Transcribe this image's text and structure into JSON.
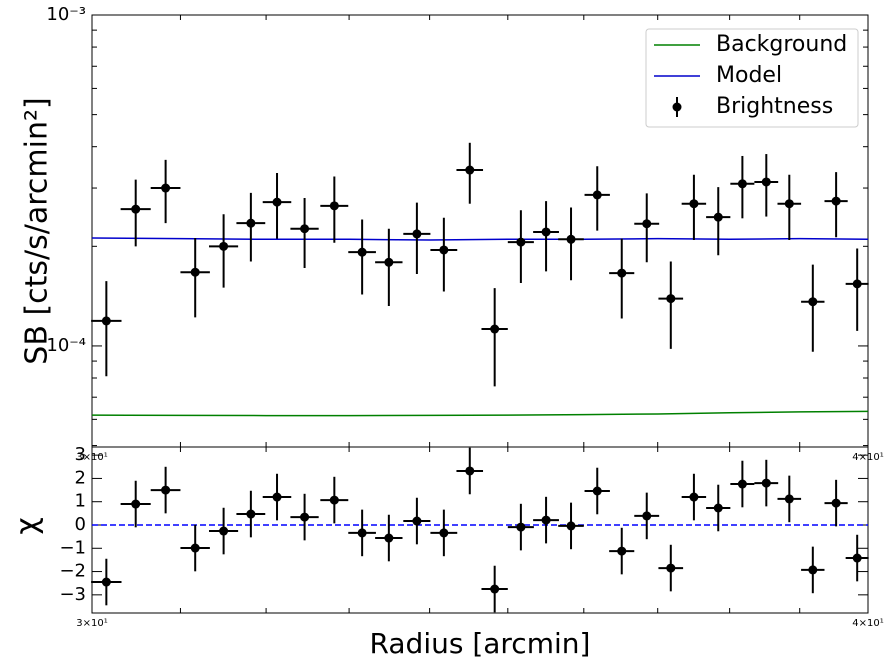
{
  "chart_data": [
    {
      "type": "errorbar",
      "ylabel": "SB [cts/s/arcmin²]",
      "xscale": "log",
      "yscale": "log",
      "xlim": [
        30,
        40
      ],
      "xticks": [
        {
          "value": 30,
          "label": "3×10¹"
        },
        {
          "value": 40,
          "label": "4×10¹"
        }
      ],
      "xminorticks": [
        31,
        32,
        33,
        34,
        35,
        36,
        37,
        38,
        39
      ],
      "ylim": [
        4.95e-05,
        0.001
      ],
      "yticks": [
        {
          "value": 0.0001,
          "label": "10⁻⁴"
        },
        {
          "value": 0.001,
          "label": "10⁻³"
        }
      ],
      "yminorticks": [
        5e-05,
        6e-05,
        7e-05,
        8e-05,
        9e-05,
        0.0002,
        0.0003,
        0.0004,
        0.0005,
        0.0006,
        0.0007,
        0.0008,
        0.0009
      ],
      "legend": "upper right",
      "series": [
        {
          "name": "Background",
          "type": "line",
          "color": "#008000",
          "x": [
            30,
            31,
            32,
            33,
            34,
            35,
            36,
            37,
            38,
            39,
            40
          ],
          "values": [
            6.18e-05,
            6.17e-05,
            6.16e-05,
            6.16e-05,
            6.17e-05,
            6.18e-05,
            6.2e-05,
            6.23e-05,
            6.28e-05,
            6.32e-05,
            6.34e-05
          ]
        },
        {
          "name": "Model",
          "type": "line",
          "color": "#0000cc",
          "x": [
            30,
            31,
            32,
            33,
            34,
            35,
            36,
            37,
            38,
            39,
            40
          ],
          "values": [
            0.000212,
            0.000211,
            0.00021,
            0.00021,
            0.000209,
            0.00021,
            0.00021,
            0.000211,
            0.00021,
            0.000211,
            0.00021
          ]
        },
        {
          "name": "Brightness",
          "type": "errorbar",
          "color": "#000000",
          "x": [
            30.16,
            30.49,
            30.83,
            31.17,
            31.5,
            31.82,
            32.13,
            32.46,
            32.82,
            33.16,
            33.49,
            33.84,
            34.18,
            34.51,
            34.83,
            35.17,
            35.5,
            35.83,
            36.18,
            36.51,
            36.85,
            37.18,
            37.5,
            37.84,
            38.18,
            38.52,
            38.85,
            39.19,
            39.53,
            39.84
          ],
          "values": [
            0.000119,
            0.000259,
            0.0003,
            0.000167,
            0.0002,
            0.000235,
            0.000272,
            0.000226,
            0.000265,
            0.000192,
            0.000179,
            0.000218,
            0.000195,
            0.00034,
            0.0001125,
            0.000206,
            0.000221,
            0.00021,
            0.000286,
            0.000166,
            0.000234,
            0.000139,
            0.000269,
            0.000245,
            0.000309,
            0.000313,
            0.000269,
            0.000136,
            0.000274,
            0.000154
          ],
          "xerr": 0.17,
          "yerr": [
            3.8e-05,
            5.9e-05,
            6.5e-05,
            4.5e-05,
            5e-05,
            5.5e-05,
            6.1e-05,
            5.4e-05,
            6e-05,
            4.9e-05,
            4.7e-05,
            5.3e-05,
            4.9e-05,
            7.1e-05,
            3.7e-05,
            5.1e-05,
            5.3e-05,
            5.2e-05,
            6.3e-05,
            4.5e-05,
            5.5e-05,
            4.1e-05,
            6e-05,
            5.7e-05,
            6.6e-05,
            6.7e-05,
            6e-05,
            4e-05,
            6.1e-05,
            4.3e-05
          ]
        }
      ]
    },
    {
      "type": "residual",
      "xlabel": "Radius [arcmin]",
      "ylabel": "χ",
      "xscale": "log",
      "xlim": [
        30,
        40
      ],
      "xticks": [
        {
          "value": 30,
          "label": "3×10¹"
        },
        {
          "value": 40,
          "label": "4×10¹"
        }
      ],
      "xminorticks": [
        31,
        32,
        33,
        34,
        35,
        36,
        37,
        38,
        39
      ],
      "ylim": [
        -3.78,
        3.35
      ],
      "yticks": [
        {
          "value": -3,
          "label": "−3"
        },
        {
          "value": -2,
          "label": "−2"
        },
        {
          "value": -1,
          "label": "−1"
        },
        0,
        1,
        2,
        3
      ],
      "refline": {
        "value": 0,
        "color": "#0000ff"
      },
      "series": [
        {
          "type": "errorbar",
          "color": "#000000",
          "x": [
            30.16,
            30.49,
            30.83,
            31.17,
            31.5,
            31.82,
            32.13,
            32.46,
            32.82,
            33.16,
            33.49,
            33.84,
            34.18,
            34.51,
            34.83,
            35.17,
            35.5,
            35.83,
            36.18,
            36.51,
            36.85,
            37.18,
            37.5,
            37.84,
            38.18,
            38.52,
            38.85,
            39.19,
            39.53,
            39.84
          ],
          "values": [
            -2.45,
            0.9,
            1.5,
            -0.99,
            -0.26,
            0.47,
            1.2,
            0.34,
            1.07,
            -0.34,
            -0.56,
            0.17,
            -0.34,
            2.32,
            -2.75,
            -0.09,
            0.21,
            -0.04,
            1.46,
            -1.12,
            0.39,
            -1.85,
            1.2,
            0.73,
            1.76,
            1.8,
            1.12,
            -1.93,
            0.94,
            -1.42
          ],
          "xerr": 0.17,
          "yerr": 1
        }
      ]
    }
  ]
}
